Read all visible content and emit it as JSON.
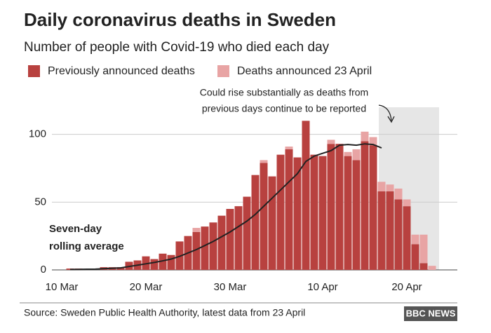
{
  "chart_data": {
    "type": "bar",
    "title": "Daily coronavirus deaths in Sweden",
    "subtitle": "Number of people with Covid-19 who died each day",
    "categories": [
      "10 Mar",
      null,
      null,
      null,
      null,
      null,
      null,
      null,
      null,
      null,
      "20 Mar",
      null,
      null,
      null,
      null,
      null,
      null,
      null,
      null,
      null,
      "30 Mar",
      null,
      null,
      null,
      null,
      null,
      null,
      null,
      null,
      null,
      null,
      "10 Apr",
      null,
      null,
      null,
      null,
      null,
      null,
      null,
      null,
      null,
      "20 Apr",
      null,
      null,
      null
    ],
    "series": [
      {
        "name": "Previously announced deaths",
        "color": "#b8413f",
        "values": [
          0,
          1,
          1,
          0,
          0,
          2,
          2,
          2,
          6,
          7,
          10,
          8,
          12,
          11,
          21,
          25,
          28,
          32,
          35,
          40,
          45,
          47,
          54,
          70,
          79,
          69,
          85,
          89,
          83,
          110,
          85,
          84,
          93,
          93,
          84,
          81,
          95,
          92,
          58,
          58,
          52,
          47,
          19,
          5,
          0
        ]
      },
      {
        "name": "Deaths announced 23 April",
        "color": "#e8a4a4",
        "values": [
          0,
          0,
          0,
          0,
          0,
          0,
          0,
          0,
          0,
          0,
          0,
          0,
          0,
          0,
          0,
          0,
          3,
          0,
          0,
          0,
          0,
          0,
          0,
          0,
          2,
          0,
          0,
          2,
          0,
          0,
          0,
          0,
          3,
          0,
          3,
          8,
          7,
          6,
          7,
          5,
          8,
          5,
          7,
          21,
          3
        ]
      }
    ],
    "line": {
      "color": "#222222",
      "values": [
        null,
        0.3,
        0.4,
        0.5,
        0.6,
        0.9,
        1.2,
        1.5,
        2.5,
        3.5,
        4.5,
        5.5,
        6.7,
        8,
        10,
        12.5,
        15,
        18,
        21,
        24.5,
        28,
        32,
        36,
        41,
        47,
        53,
        59,
        65,
        71,
        80,
        84,
        86,
        88,
        92,
        92.5,
        92,
        93,
        92.5,
        90,
        null,
        null,
        null,
        null,
        null,
        null
      ]
    },
    "line_label": [
      "Seven-day",
      "rolling average"
    ],
    "annotation": [
      "Could rise substantially as deaths from",
      "previous days continue to be reported"
    ],
    "ylim": [
      0,
      120
    ],
    "yticks": [
      0,
      50,
      100
    ],
    "grid": true,
    "source": "Source: Sweden Public Health Authority, latest data from 23 April",
    "logo": "BBC NEWS"
  }
}
